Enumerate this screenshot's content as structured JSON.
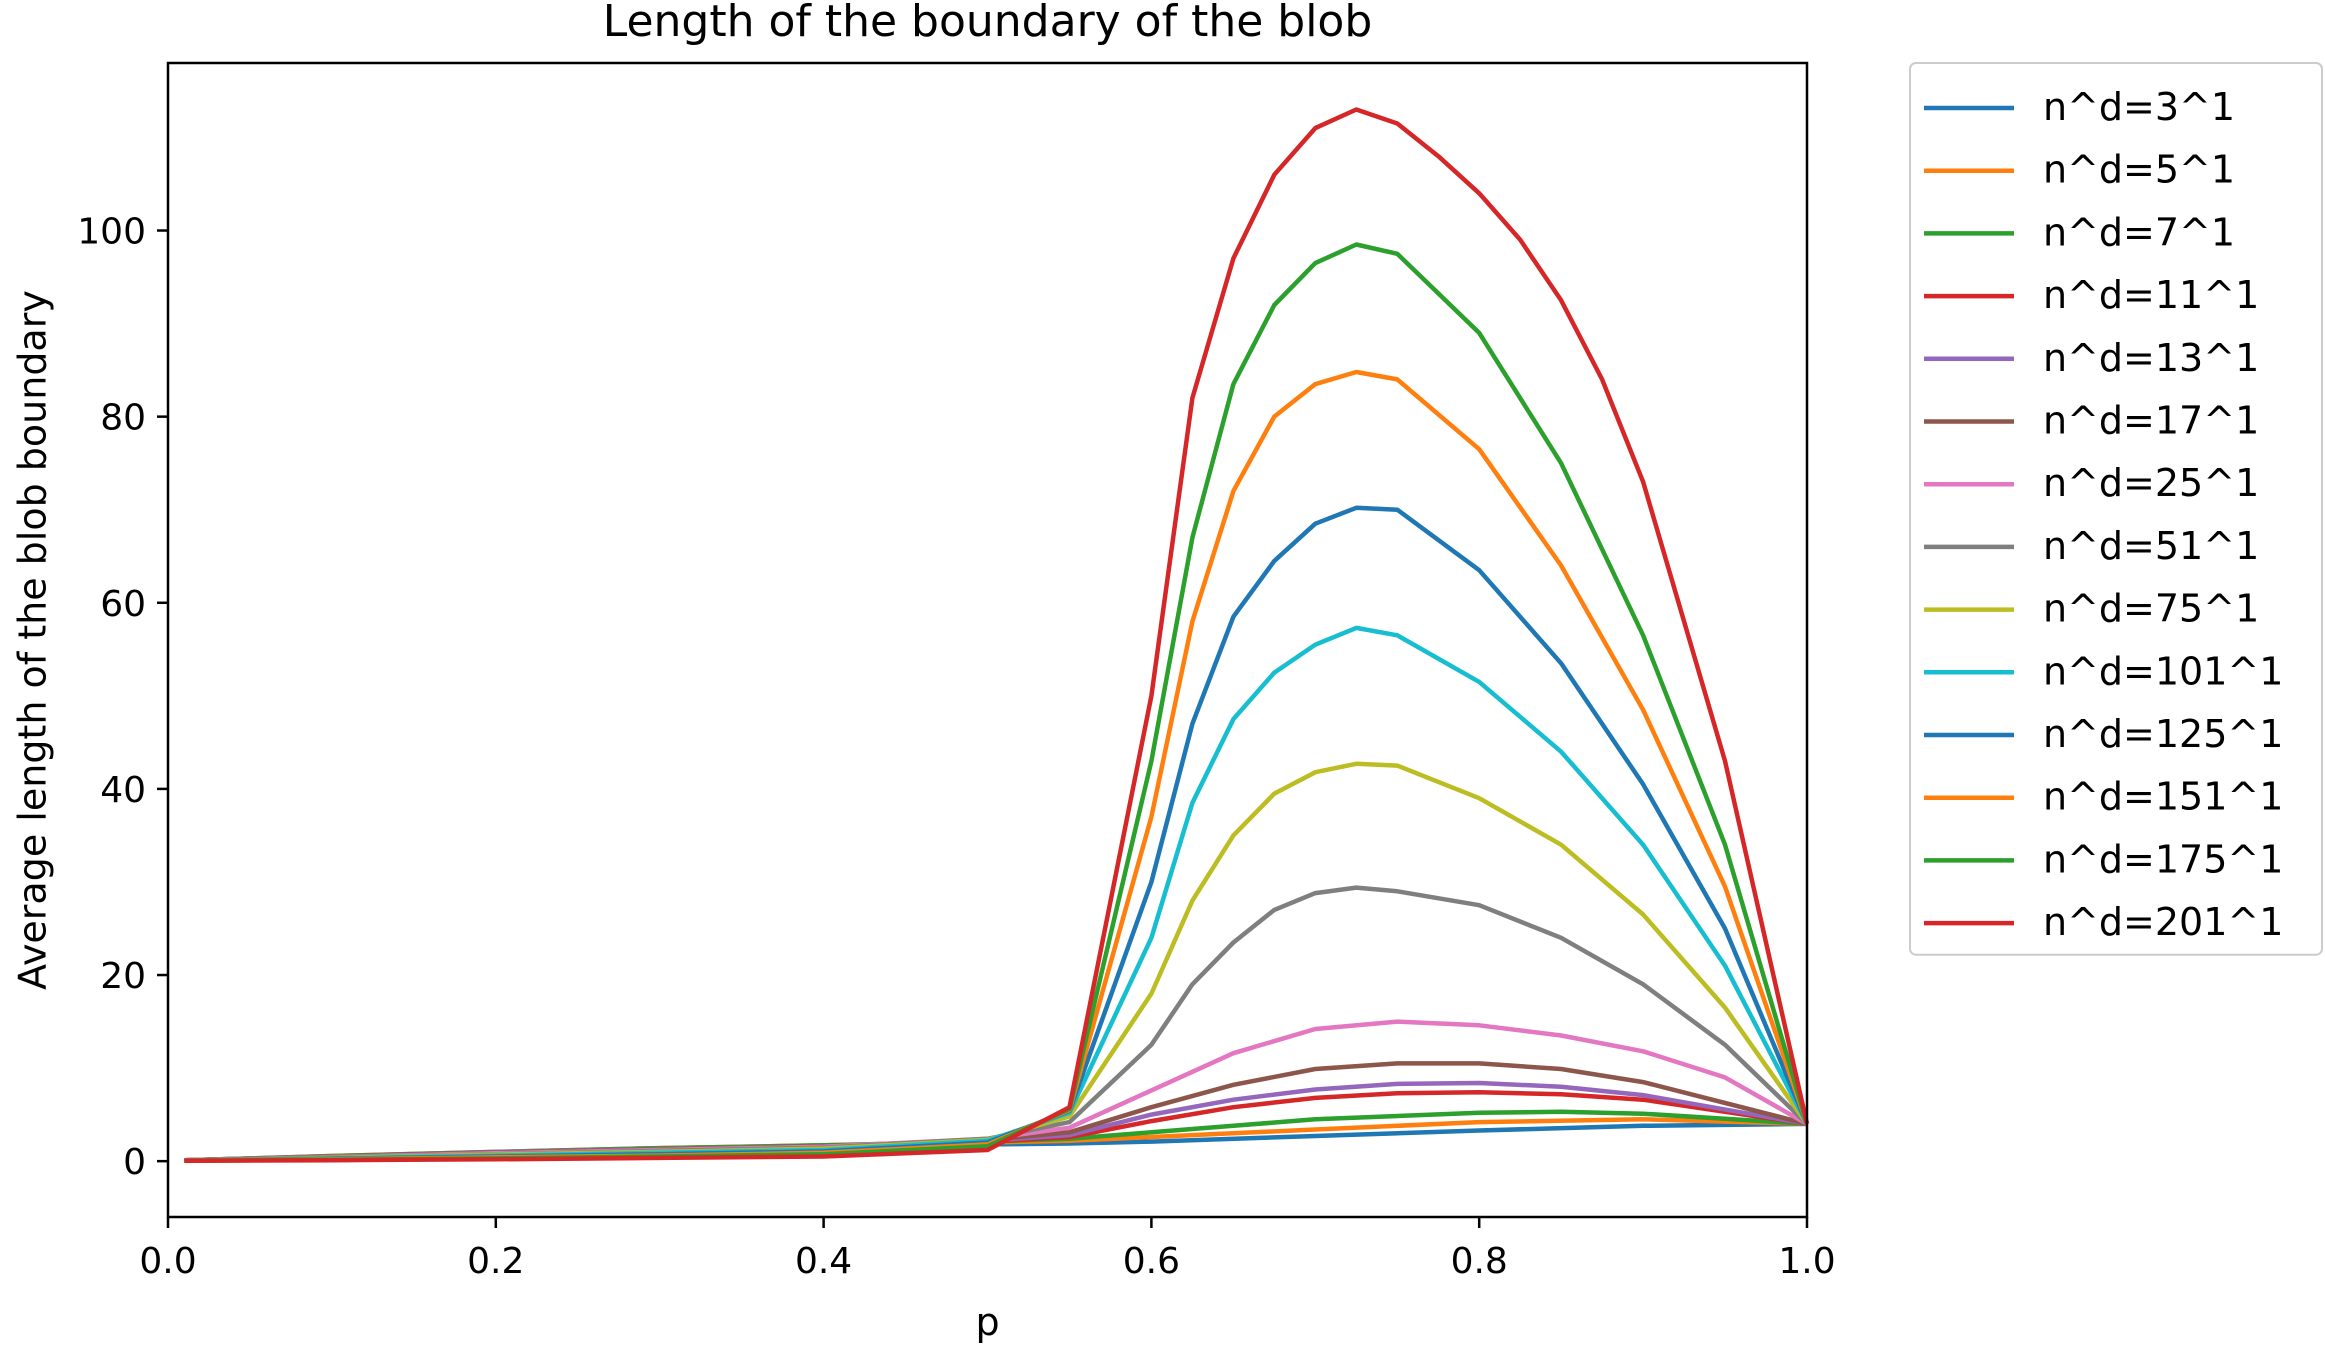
{
  "chart_data": {
    "type": "line",
    "title": "Length of the boundary of the blob",
    "xlabel": "p",
    "ylabel": "Average length of the blob boundary",
    "xlim": [
      0.0,
      1.0
    ],
    "ylim": [
      -6,
      118
    ],
    "xticks": [
      0.0,
      0.2,
      0.4,
      0.6,
      0.8,
      1.0
    ],
    "xtick_labels": [
      "0.0",
      "0.2",
      "0.4",
      "0.6",
      "0.8",
      "1.0"
    ],
    "yticks": [
      0,
      20,
      40,
      60,
      80,
      100
    ],
    "ytick_labels": [
      "0",
      "20",
      "40",
      "60",
      "80",
      "100"
    ],
    "grid": false,
    "legend_position": "outside right",
    "series": [
      {
        "name": "n^d=3^1",
        "color": "#1f77b4",
        "x": [
          0.01,
          0.1,
          0.2,
          0.3,
          0.4,
          0.5,
          0.55,
          0.6,
          0.7,
          0.8,
          0.9,
          1.0
        ],
        "y": [
          0.06,
          0.5,
          0.95,
          1.3,
          1.6,
          1.8,
          1.9,
          2.1,
          2.7,
          3.3,
          3.8,
          4.0
        ]
      },
      {
        "name": "n^d=5^1",
        "color": "#ff7f0e",
        "x": [
          0.01,
          0.1,
          0.2,
          0.3,
          0.4,
          0.5,
          0.55,
          0.6,
          0.7,
          0.8,
          0.9,
          1.0
        ],
        "y": [
          0.08,
          0.55,
          1.0,
          1.4,
          1.7,
          2.0,
          2.2,
          2.6,
          3.4,
          4.2,
          4.5,
          4.0
        ]
      },
      {
        "name": "n^d=7^1",
        "color": "#2ca02c",
        "x": [
          0.01,
          0.1,
          0.2,
          0.3,
          0.4,
          0.5,
          0.55,
          0.6,
          0.65,
          0.7,
          0.8,
          0.85,
          0.9,
          1.0
        ],
        "y": [
          0.1,
          0.55,
          1.0,
          1.4,
          1.7,
          2.1,
          2.4,
          3.1,
          3.8,
          4.5,
          5.2,
          5.3,
          5.1,
          4.0
        ]
      },
      {
        "name": "n^d=11^1",
        "color": "#d62728",
        "x": [
          0.01,
          0.1,
          0.2,
          0.3,
          0.4,
          0.5,
          0.55,
          0.6,
          0.65,
          0.7,
          0.75,
          0.8,
          0.85,
          0.9,
          1.0
        ],
        "y": [
          0.1,
          0.5,
          0.95,
          1.3,
          1.6,
          2.1,
          2.6,
          4.3,
          5.8,
          6.8,
          7.3,
          7.4,
          7.2,
          6.6,
          4.0
        ]
      },
      {
        "name": "n^d=13^1",
        "color": "#9467bd",
        "x": [
          0.01,
          0.1,
          0.2,
          0.3,
          0.4,
          0.5,
          0.55,
          0.6,
          0.65,
          0.7,
          0.75,
          0.8,
          0.85,
          0.9,
          1.0
        ],
        "y": [
          0.1,
          0.5,
          0.95,
          1.3,
          1.6,
          2.2,
          2.8,
          5.0,
          6.6,
          7.7,
          8.3,
          8.4,
          8.0,
          7.1,
          4.0
        ]
      },
      {
        "name": "n^d=17^1",
        "color": "#8c564b",
        "x": [
          0.01,
          0.1,
          0.2,
          0.3,
          0.4,
          0.5,
          0.55,
          0.6,
          0.65,
          0.7,
          0.75,
          0.8,
          0.85,
          0.9,
          1.0
        ],
        "y": [
          0.1,
          0.5,
          0.9,
          1.25,
          1.6,
          2.3,
          3.1,
          5.8,
          8.2,
          9.9,
          10.5,
          10.5,
          9.9,
          8.5,
          4.0
        ]
      },
      {
        "name": "n^d=25^1",
        "color": "#e377c2",
        "x": [
          0.01,
          0.1,
          0.2,
          0.3,
          0.4,
          0.5,
          0.55,
          0.6,
          0.65,
          0.7,
          0.75,
          0.8,
          0.85,
          0.9,
          0.95,
          1.0
        ],
        "y": [
          0.1,
          0.45,
          0.85,
          1.2,
          1.55,
          2.4,
          3.6,
          7.6,
          11.6,
          14.2,
          15.0,
          14.6,
          13.5,
          11.8,
          9.0,
          4.0
        ]
      },
      {
        "name": "n^d=51^1",
        "color": "#7f7f7f",
        "x": [
          0.01,
          0.1,
          0.2,
          0.3,
          0.4,
          0.5,
          0.55,
          0.6,
          0.625,
          0.65,
          0.675,
          0.7,
          0.725,
          0.75,
          0.8,
          0.85,
          0.9,
          0.95,
          1.0
        ],
        "y": [
          0.1,
          0.4,
          0.75,
          1.1,
          1.45,
          2.4,
          4.2,
          12.5,
          19.0,
          23.5,
          27.0,
          28.8,
          29.4,
          29.0,
          27.5,
          24.0,
          19.0,
          12.5,
          4.0
        ]
      },
      {
        "name": "n^d=75^1",
        "color": "#bcbd22",
        "x": [
          0.01,
          0.1,
          0.2,
          0.3,
          0.4,
          0.5,
          0.55,
          0.6,
          0.625,
          0.65,
          0.675,
          0.7,
          0.725,
          0.75,
          0.8,
          0.85,
          0.9,
          0.95,
          1.0
        ],
        "y": [
          0.05,
          0.35,
          0.7,
          1.0,
          1.35,
          2.3,
          4.8,
          18.0,
          28.0,
          35.0,
          39.5,
          41.8,
          42.7,
          42.5,
          39.0,
          34.0,
          26.5,
          16.5,
          4.0
        ]
      },
      {
        "name": "n^d=101^1",
        "color": "#17becf",
        "x": [
          0.01,
          0.1,
          0.2,
          0.3,
          0.4,
          0.5,
          0.55,
          0.6,
          0.625,
          0.65,
          0.675,
          0.7,
          0.725,
          0.75,
          0.8,
          0.85,
          0.9,
          0.95,
          1.0
        ],
        "y": [
          0.05,
          0.3,
          0.6,
          0.9,
          1.2,
          2.2,
          5.2,
          24.0,
          38.5,
          47.5,
          52.5,
          55.5,
          57.3,
          56.5,
          51.5,
          44.0,
          34.0,
          21.0,
          4.0
        ]
      },
      {
        "name": "n^d=125^1",
        "color": "#1f77b4",
        "x": [
          0.01,
          0.1,
          0.2,
          0.3,
          0.4,
          0.5,
          0.55,
          0.6,
          0.625,
          0.65,
          0.675,
          0.7,
          0.725,
          0.75,
          0.8,
          0.85,
          0.9,
          0.95,
          1.0
        ],
        "y": [
          0.05,
          0.25,
          0.5,
          0.75,
          1.05,
          2.0,
          5.4,
          30.0,
          47.0,
          58.5,
          64.5,
          68.5,
          70.2,
          70.0,
          63.5,
          53.5,
          40.5,
          25.0,
          4.0
        ]
      },
      {
        "name": "n^d=151^1",
        "color": "#ff7f0e",
        "x": [
          0.01,
          0.1,
          0.2,
          0.3,
          0.4,
          0.5,
          0.55,
          0.6,
          0.625,
          0.65,
          0.675,
          0.7,
          0.725,
          0.75,
          0.8,
          0.85,
          0.9,
          0.95,
          1.0
        ],
        "y": [
          0.05,
          0.2,
          0.4,
          0.6,
          0.9,
          1.8,
          5.5,
          37.0,
          58.0,
          72.0,
          80.0,
          83.5,
          84.8,
          84.0,
          76.5,
          64.0,
          48.5,
          29.5,
          4.0
        ]
      },
      {
        "name": "n^d=175^1",
        "color": "#2ca02c",
        "x": [
          0.01,
          0.1,
          0.2,
          0.3,
          0.4,
          0.5,
          0.55,
          0.6,
          0.625,
          0.65,
          0.675,
          0.7,
          0.725,
          0.75,
          0.8,
          0.85,
          0.9,
          0.95,
          1.0
        ],
        "y": [
          0.05,
          0.15,
          0.3,
          0.5,
          0.75,
          1.6,
          5.6,
          43.0,
          67.0,
          83.5,
          92.0,
          96.5,
          98.5,
          97.5,
          89.0,
          75.0,
          56.5,
          34.0,
          4.0
        ]
      },
      {
        "name": "n^d=201^1",
        "color": "#d62728",
        "x": [
          0.01,
          0.1,
          0.2,
          0.3,
          0.4,
          0.5,
          0.55,
          0.6,
          0.625,
          0.65,
          0.675,
          0.7,
          0.725,
          0.75,
          0.775,
          0.8,
          0.825,
          0.85,
          0.875,
          0.9,
          0.95,
          1.0
        ],
        "y": [
          0.05,
          0.1,
          0.2,
          0.35,
          0.5,
          1.2,
          5.8,
          50.0,
          82.0,
          97.0,
          106.0,
          111.0,
          113.0,
          111.5,
          108.0,
          104.0,
          99.0,
          92.5,
          84.0,
          73.0,
          43.0,
          4.0
        ]
      }
    ]
  }
}
